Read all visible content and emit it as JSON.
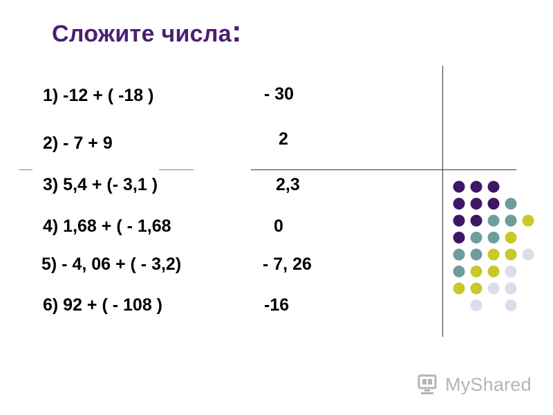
{
  "title": "Сложите числа",
  "title_suffix": ":",
  "problems": [
    {
      "expr": "1) -12 + ( -18 )",
      "answer": "- 30"
    },
    {
      "expr": "2)  - 7 +  9",
      "answer": "2"
    },
    {
      "expr": "3)  5,4 + (- 3,1 )",
      "answer": "2,3"
    },
    {
      "expr": "4)  1,68 + ( - 1,68",
      "answer": "0"
    },
    {
      "expr": "5) - 4, 06 + ( - 3,2)",
      "answer": "- 7, 26"
    },
    {
      "expr": "6)  92 + ( - 108 )",
      "answer": "-16"
    }
  ],
  "watermark": {
    "text": "MyShared",
    "icon": "myshared-logo-icon"
  },
  "colors": {
    "title": "#4b1f73",
    "dot_purple": "#3d1766",
    "dot_teal": "#6f9c9c",
    "dot_yellow": "#c8c82a",
    "dot_lavender": "#dcdcec"
  },
  "dot_grid": [
    [
      "purple",
      "purple",
      "purple",
      null,
      null
    ],
    [
      "purple",
      "purple",
      "purple",
      "teal",
      null
    ],
    [
      "purple",
      "purple",
      "teal",
      "teal",
      "yellow"
    ],
    [
      "purple",
      "teal",
      "teal",
      "yellow",
      null
    ],
    [
      "teal",
      "teal",
      "yellow",
      "yellow",
      "lavender"
    ],
    [
      "teal",
      "yellow",
      "yellow",
      "lavender",
      null
    ],
    [
      "yellow",
      "yellow",
      "lavender",
      "lavender",
      null
    ],
    [
      null,
      "lavender",
      null,
      "lavender",
      null
    ]
  ]
}
